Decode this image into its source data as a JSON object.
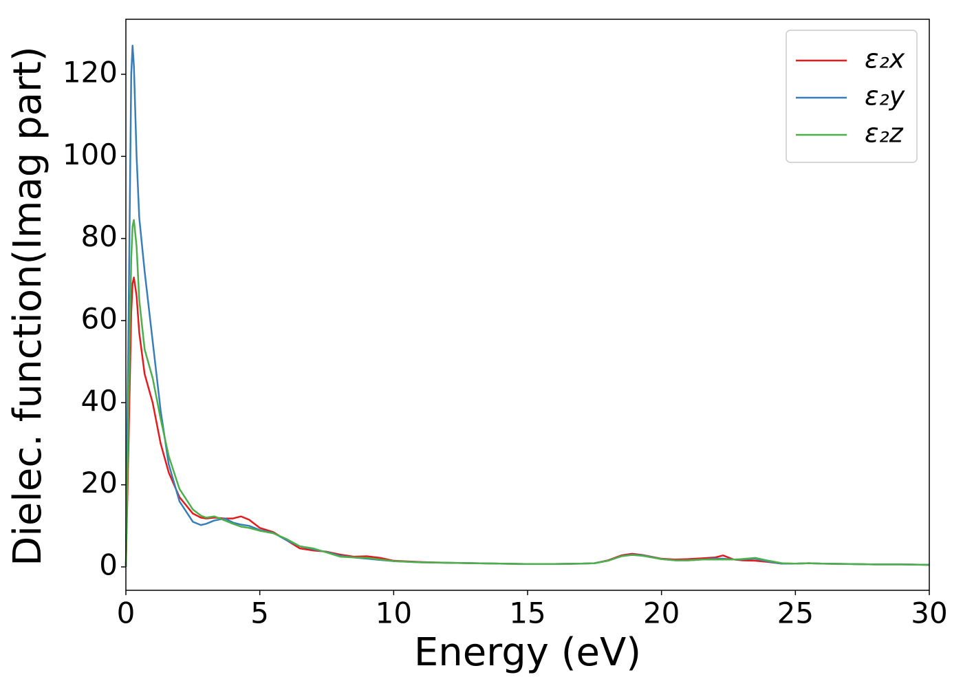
{
  "chart_data": {
    "type": "line",
    "xlabel": "Energy (eV)",
    "ylabel": "Dielec. function(Imag part)",
    "x": [
      0,
      0.1,
      0.2,
      0.25,
      0.3,
      0.4,
      0.5,
      0.7,
      1.0,
      1.3,
      1.6,
      2.0,
      2.5,
      2.8,
      3.0,
      3.3,
      3.7,
      4.0,
      4.3,
      4.6,
      5.0,
      5.5,
      6.0,
      6.5,
      7.0,
      7.5,
      8.0,
      8.5,
      9.0,
      9.5,
      10,
      11,
      12,
      13,
      14,
      15,
      16,
      17,
      17.5,
      18,
      18.5,
      18.9,
      19.3,
      20,
      20.5,
      21,
      21.5,
      22,
      22.3,
      22.7,
      23,
      23.5,
      24,
      24.5,
      25,
      25.5,
      26,
      27,
      28,
      29,
      30
    ],
    "series": [
      {
        "name": "ε₂x",
        "color": "#e41a1c",
        "values": [
          0,
          30,
          62,
          69,
          70.5,
          66,
          57,
          47,
          40,
          30,
          23,
          17,
          13,
          12,
          11.8,
          12,
          11.8,
          11.8,
          12.3,
          11.5,
          9.5,
          8.5,
          6.5,
          4.5,
          4,
          3.7,
          3,
          2.5,
          2.6,
          2.2,
          1.5,
          1.2,
          1.0,
          0.9,
          0.8,
          0.7,
          0.7,
          0.8,
          0.9,
          1.6,
          2.8,
          3.2,
          2.9,
          2.0,
          1.8,
          1.9,
          2.1,
          2.3,
          2.8,
          1.8,
          1.6,
          1.5,
          1.2,
          0.8,
          0.8,
          0.9,
          0.8,
          0.7,
          0.6,
          0.6,
          0.5
        ]
      },
      {
        "name": "ε₂y",
        "color": "#377eb8",
        "values": [
          0,
          60,
          120,
          127,
          122,
          100,
          85,
          72,
          55,
          38,
          25,
          16,
          11,
          10.2,
          10.5,
          11.3,
          11.8,
          10.8,
          10.3,
          10,
          9,
          8.3,
          6.5,
          5,
          4.3,
          3.6,
          2.7,
          2.3,
          2.0,
          1.7,
          1.4,
          1.1,
          1.0,
          0.9,
          0.8,
          0.7,
          0.7,
          0.8,
          0.9,
          1.5,
          2.6,
          3.0,
          2.8,
          1.9,
          1.6,
          1.6,
          1.8,
          2.0,
          2.0,
          1.8,
          1.8,
          2.0,
          1.3,
          0.8,
          0.8,
          0.9,
          0.8,
          0.7,
          0.6,
          0.6,
          0.5
        ]
      },
      {
        "name": "ε₂z",
        "color": "#4daf4a",
        "values": [
          0,
          40,
          75,
          83,
          84.5,
          78,
          65,
          53,
          46,
          36,
          27,
          19,
          14,
          12.5,
          12,
          12.3,
          11.3,
          10.5,
          9.8,
          9.5,
          8.8,
          8.2,
          6.8,
          5,
          4.5,
          3.5,
          2.5,
          2.3,
          2.2,
          1.8,
          1.4,
          1.1,
          1.0,
          0.9,
          0.8,
          0.7,
          0.7,
          0.8,
          0.9,
          1.5,
          2.6,
          2.9,
          2.7,
          1.9,
          1.6,
          1.6,
          1.8,
          1.8,
          1.8,
          1.8,
          1.9,
          2.2,
          1.5,
          0.9,
          0.8,
          0.9,
          0.8,
          0.7,
          0.6,
          0.6,
          0.5
        ]
      }
    ],
    "xlim": [
      0,
      30
    ],
    "xticks": [
      0,
      5,
      10,
      15,
      20,
      25,
      30
    ],
    "ylim": [
      -5.7,
      133.4
    ],
    "yticks": [
      0,
      20,
      40,
      60,
      80,
      100,
      120
    ],
    "grid": false,
    "legend": "upper right"
  }
}
